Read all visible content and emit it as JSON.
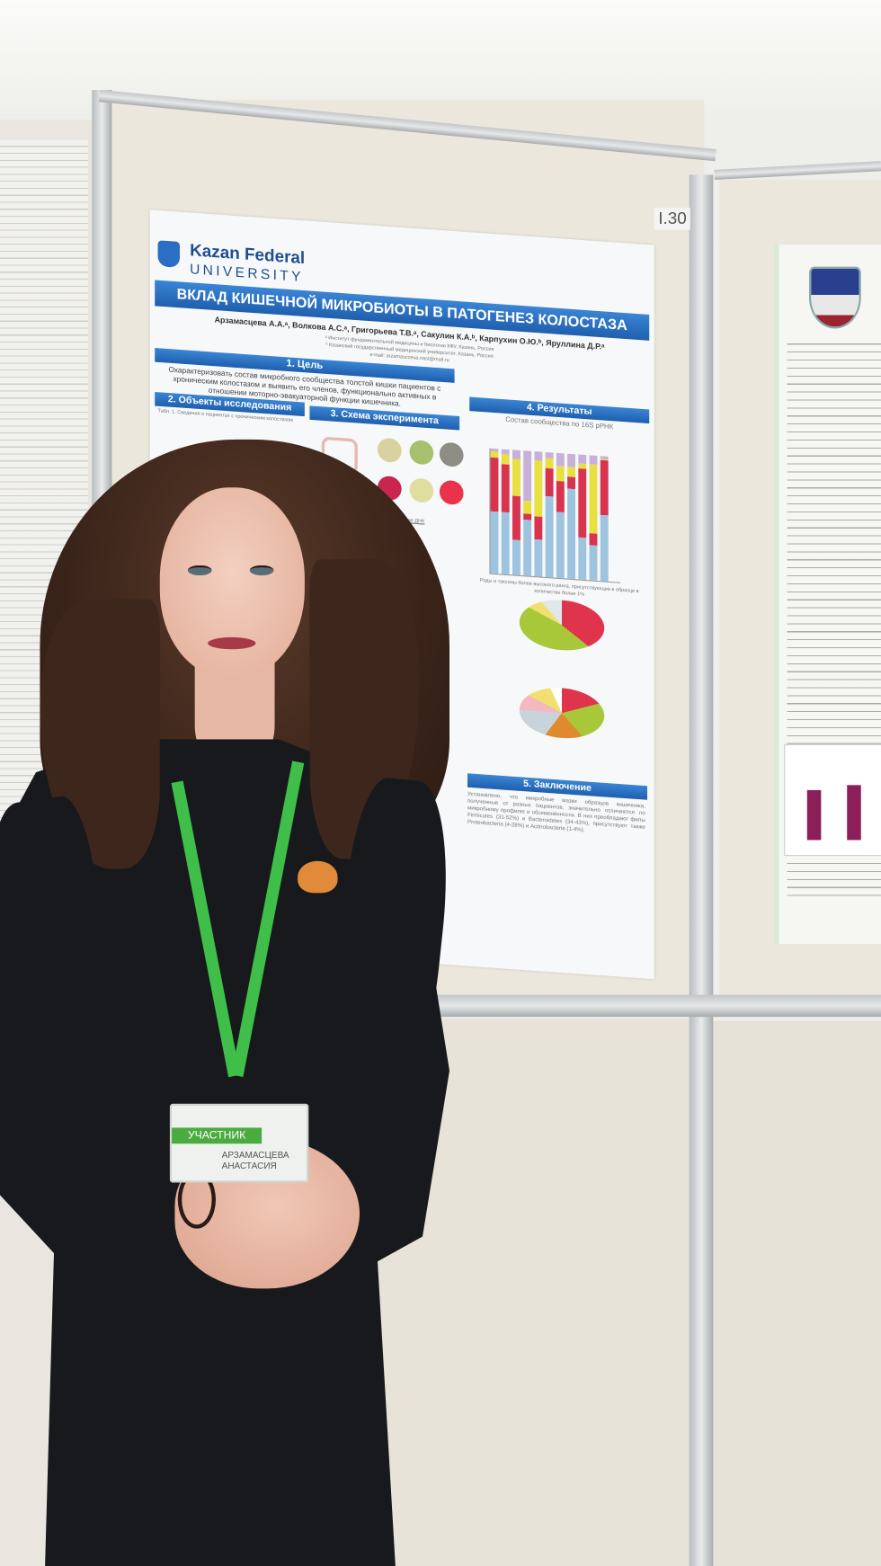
{
  "booth_number": "I.30",
  "poster": {
    "logo_line1": "Kazan Federal",
    "logo_line2": "UNIVERSITY",
    "title": "ВКЛАД КИШЕЧНОЙ МИКРОБИОТЫ В ПАТОГЕНЕЗ КОЛОСТАЗА",
    "authors": "Арзамасцева А.А.ᵃ, Волкова А.С.ᵃ, Григорьева Т.В.ᵃ, Сакулин К.А.ᵇ, Карпухин О.Ю.ᵇ, Яруллина Д.Р.ᵃ",
    "affiliation_a": "ᵃ Институт фундаментальной медицины и биологии КФУ, Казань, Россия",
    "affiliation_b": "ᵇ Казанский государственный медицинский университет, Казань, Россия",
    "email": "e-mail: arzamascceva.nast@mail.ru",
    "sections": {
      "goal": "1. Цель",
      "objects": "2. Объекты исследования",
      "scheme": "3. Схема эксперимента",
      "results": "4. Результаты",
      "conclusion": "5. Заключение"
    },
    "goal_text": "Охарактеризовать состав микробного сообщества толстой кишки пациентов с хроническим колостазом и выявить его членов, функционально активных в отношении моторно-эвакуаторной функции кишечника.",
    "table_caption": "Табл. 1. Сведения о пациентах с хроническим колостазом",
    "results_subtitle": "Состав сообщества по 16S рРНК",
    "chart_caption": "Роды и таксоны более высокого ранга, присутствующие в образце в количестве более 1%",
    "scheme_step": "Секвенирование ДНК",
    "conclusion_text": "Установлено, что микробные мазки образцов кишечника, полученные от разных пациентов, значительно отличаются по микробному профилю и обсеменённости. В них преобладают филы Firmicutes (31-52%) и Bacteroidetes (34-43%), присутствуют также Proteobacteria (4-28%) и Actinobacteria (1-4%)."
  },
  "badge": {
    "role": "УЧАСТНИК",
    "name": "АРЗАМАСЦЕВА АНАСТАСИЯ"
  },
  "colors": {
    "poster_blue": "#2a6fc4",
    "lanyard_green": "#3fbf4a",
    "board": "#ebe7dc",
    "dress": "#17191c"
  }
}
